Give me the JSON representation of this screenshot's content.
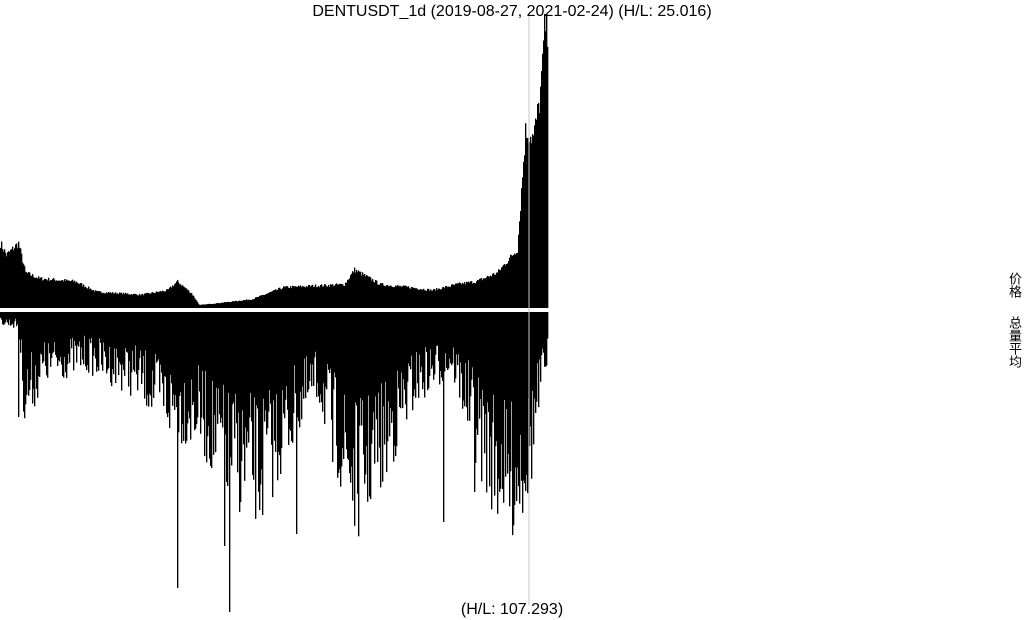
{
  "title": "DENTUSDT_1d (2019-08-27, 2021-02-24) (H/L: 25.016)",
  "footer": "(H/L: 107.293)",
  "side_labels": {
    "price": "价格",
    "volume": "总量平均"
  },
  "colors": {
    "bars": "#000000",
    "marker": "#c8c8c8",
    "background": "#ffffff"
  },
  "chart_data": [
    {
      "type": "area",
      "name": "price",
      "title": "DENTUSDT_1d (2019-08-27, 2021-02-24) (H/L: 25.016)",
      "x_start": "2019-08-27",
      "x_end": "2021-02-24",
      "hl_ratio": 25.016,
      "direction": "up",
      "anchor_points": [
        {
          "date": "2019-08-27",
          "value": 0.22
        },
        {
          "date": "2019-09-02",
          "value": 0.18
        },
        {
          "date": "2019-09-14",
          "value": 0.22
        },
        {
          "date": "2019-09-21",
          "value": 0.12
        },
        {
          "date": "2019-10-05",
          "value": 0.1
        },
        {
          "date": "2019-11-10",
          "value": 0.09
        },
        {
          "date": "2019-12-01",
          "value": 0.055
        },
        {
          "date": "2020-01-15",
          "value": 0.045
        },
        {
          "date": "2020-02-10",
          "value": 0.06
        },
        {
          "date": "2020-02-20",
          "value": 0.09
        },
        {
          "date": "2020-03-05",
          "value": 0.05
        },
        {
          "date": "2020-03-13",
          "value": 0.01
        },
        {
          "date": "2020-04-10",
          "value": 0.02
        },
        {
          "date": "2020-05-05",
          "value": 0.03
        },
        {
          "date": "2020-06-05",
          "value": 0.07
        },
        {
          "date": "2020-08-05",
          "value": 0.08
        },
        {
          "date": "2020-08-15",
          "value": 0.13
        },
        {
          "date": "2020-09-10",
          "value": 0.08
        },
        {
          "date": "2020-10-10",
          "value": 0.07
        },
        {
          "date": "2020-11-01",
          "value": 0.06
        },
        {
          "date": "2020-11-25",
          "value": 0.08
        },
        {
          "date": "2020-12-15",
          "value": 0.09
        },
        {
          "date": "2021-01-05",
          "value": 0.12
        },
        {
          "date": "2021-01-25",
          "value": 0.2
        },
        {
          "date": "2021-02-02",
          "value": 0.6
        },
        {
          "date": "2021-02-10",
          "value": 0.58
        },
        {
          "date": "2021-02-16",
          "value": 0.7
        },
        {
          "date": "2021-02-19",
          "value": 0.82
        },
        {
          "date": "2021-02-21",
          "value": 0.98
        },
        {
          "date": "2021-02-24",
          "value": 0.95
        }
      ]
    },
    {
      "type": "bar",
      "name": "volume",
      "footer": "(H/L: 107.293)",
      "direction": "down",
      "hl_ratio": 107.293,
      "anchor_points": [
        {
          "date": "2019-08-27",
          "value": 0.03
        },
        {
          "date": "2019-09-14",
          "value": 0.04
        },
        {
          "date": "2019-09-20",
          "value": 0.27
        },
        {
          "date": "2019-10-10",
          "value": 0.17
        },
        {
          "date": "2019-11-20",
          "value": 0.14
        },
        {
          "date": "2020-01-10",
          "value": 0.2
        },
        {
          "date": "2020-02-15",
          "value": 0.3
        },
        {
          "date": "2020-03-12",
          "value": 0.32
        },
        {
          "date": "2020-04-10",
          "value": 0.45
        },
        {
          "date": "2020-05-12",
          "value": 0.5
        },
        {
          "date": "2020-06-20",
          "value": 0.3
        },
        {
          "date": "2020-07-10",
          "value": 0.22
        },
        {
          "date": "2020-08-15",
          "value": 0.54
        },
        {
          "date": "2020-09-15",
          "value": 0.4
        },
        {
          "date": "2020-10-15",
          "value": 0.22
        },
        {
          "date": "2020-11-20",
          "value": 0.15
        },
        {
          "date": "2020-12-20",
          "value": 0.4
        },
        {
          "date": "2021-01-15",
          "value": 0.55
        },
        {
          "date": "2021-02-05",
          "value": 0.45
        },
        {
          "date": "2021-02-24",
          "value": 0.12
        }
      ],
      "spikes": [
        {
          "date": "2019-09-14",
          "value": 0.35
        },
        {
          "date": "2020-02-20",
          "value": 0.92
        },
        {
          "date": "2020-04-07",
          "value": 0.78
        },
        {
          "date": "2020-04-12",
          "value": 1.0
        },
        {
          "date": "2020-05-12",
          "value": 0.66
        },
        {
          "date": "2020-06-02",
          "value": 0.54
        },
        {
          "date": "2020-06-18",
          "value": 0.74
        },
        {
          "date": "2020-07-24",
          "value": 0.5
        },
        {
          "date": "2020-11-12",
          "value": 0.7
        },
        {
          "date": "2020-12-13",
          "value": 0.6
        },
        {
          "date": "2021-01-10",
          "value": 0.59
        },
        {
          "date": "2021-01-24",
          "value": 0.63
        }
      ]
    }
  ]
}
